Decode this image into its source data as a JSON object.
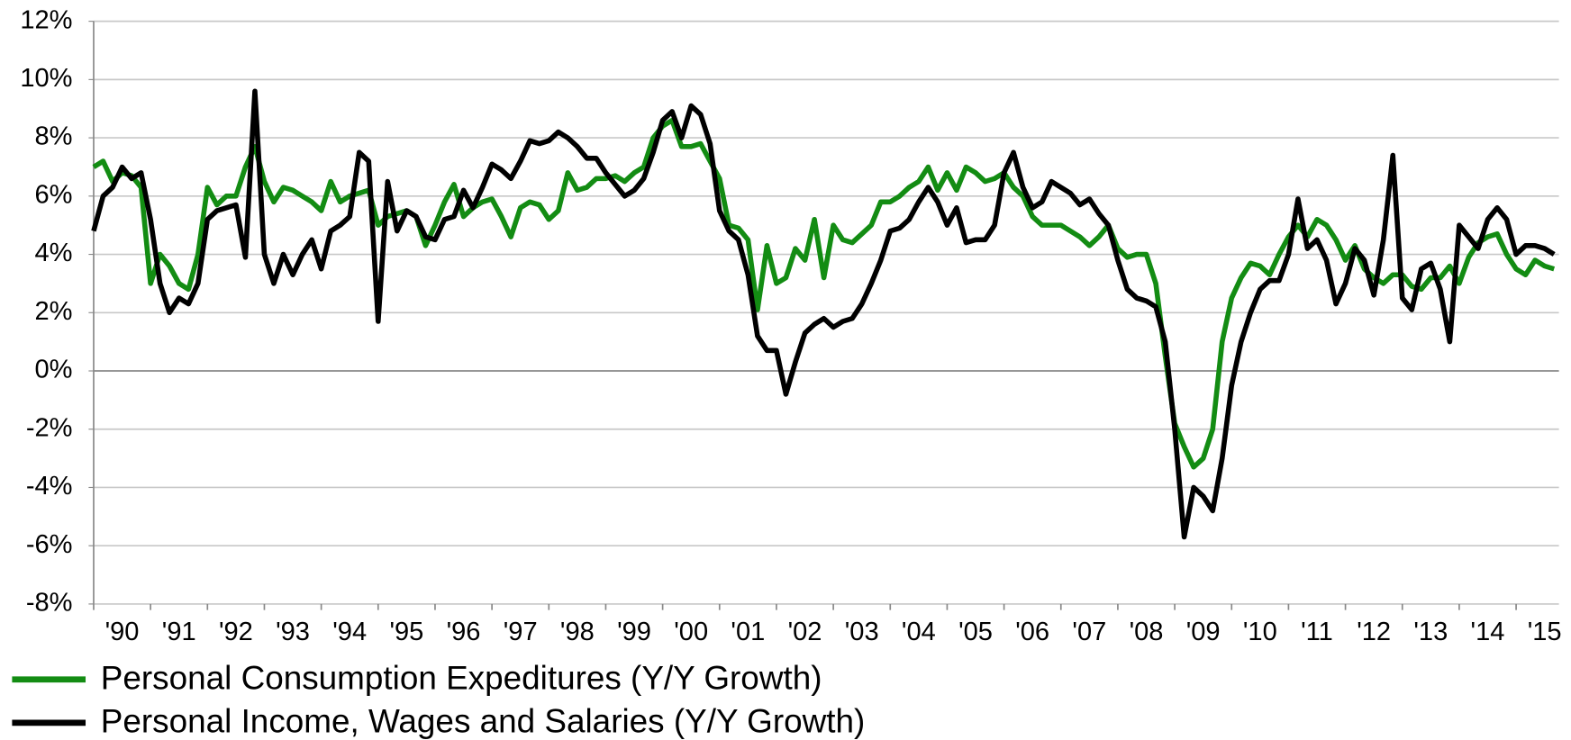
{
  "chart_data": {
    "type": "line",
    "categories": [
      "'90",
      null,
      null,
      null,
      null,
      null,
      "'91",
      null,
      null,
      null,
      null,
      null,
      "'92",
      null,
      null,
      null,
      null,
      null,
      "'93",
      null,
      null,
      null,
      null,
      null,
      "'94",
      null,
      null,
      null,
      null,
      null,
      "'95",
      null,
      null,
      null,
      null,
      null,
      "'96",
      null,
      null,
      null,
      null,
      null,
      "'97",
      null,
      null,
      null,
      null,
      null,
      "'98",
      null,
      null,
      null,
      null,
      null,
      "'99",
      null,
      null,
      null,
      null,
      null,
      "'00",
      null,
      null,
      null,
      null,
      null,
      "'01",
      null,
      null,
      null,
      null,
      null,
      "'02",
      null,
      null,
      null,
      null,
      null,
      "'03",
      null,
      null,
      null,
      null,
      null,
      "'04",
      null,
      null,
      null,
      null,
      null,
      "'05",
      null,
      null,
      null,
      null,
      null,
      "'06",
      null,
      null,
      null,
      null,
      null,
      "'07",
      null,
      null,
      null,
      null,
      null,
      "'08",
      null,
      null,
      null,
      null,
      null,
      "'09",
      null,
      null,
      null,
      null,
      null,
      "'10",
      null,
      null,
      null,
      null,
      null,
      "'11",
      null,
      null,
      null,
      null,
      null,
      "'12",
      null,
      null,
      null,
      null,
      null,
      "'13",
      null,
      null,
      null,
      null,
      null,
      "'14",
      null,
      null,
      null,
      null,
      null,
      "'15",
      null,
      null,
      null,
      null
    ],
    "series": [
      {
        "name": "Personal Consumption Expeditures (Y/Y Growth)",
        "color": "#138c13",
        "values": [
          7.0,
          7.2,
          6.5,
          6.8,
          6.7,
          6.3,
          3.0,
          4.0,
          3.6,
          3.0,
          2.8,
          4.0,
          6.3,
          5.7,
          6.0,
          6.0,
          7.0,
          7.7,
          6.5,
          5.8,
          6.3,
          6.2,
          6.0,
          5.8,
          5.5,
          6.5,
          5.8,
          6.0,
          6.1,
          6.2,
          5.0,
          5.3,
          5.4,
          5.5,
          5.3,
          4.3,
          5.0,
          5.8,
          6.4,
          5.3,
          5.6,
          5.8,
          5.9,
          5.3,
          4.6,
          5.6,
          5.8,
          5.7,
          5.2,
          5.5,
          6.8,
          6.2,
          6.3,
          6.6,
          6.6,
          6.7,
          6.5,
          6.8,
          7.0,
          8.0,
          8.4,
          8.6,
          7.7,
          7.7,
          7.8,
          7.2,
          6.6,
          5.0,
          4.9,
          4.5,
          2.1,
          4.3,
          3.0,
          3.2,
          4.2,
          3.8,
          5.2,
          3.2,
          5.0,
          4.5,
          4.4,
          4.7,
          5.0,
          5.8,
          5.8,
          6.0,
          6.3,
          6.5,
          7.0,
          6.2,
          6.8,
          6.2,
          7.0,
          6.8,
          6.5,
          6.6,
          6.8,
          6.3,
          6.0,
          5.3,
          5.0,
          5.0,
          5.0,
          4.8,
          4.6,
          4.3,
          4.6,
          5.0,
          4.2,
          3.9,
          4.0,
          4.0,
          3.0,
          0.5,
          -1.8,
          -2.6,
          -3.3,
          -3.0,
          -2.0,
          1.0,
          2.5,
          3.2,
          3.7,
          3.6,
          3.3,
          4.0,
          4.6,
          5.0,
          4.6,
          5.2,
          5.0,
          4.5,
          3.8,
          4.3,
          3.5,
          3.2,
          3.0,
          3.3,
          3.3,
          2.9,
          2.8,
          3.2,
          3.2,
          3.6,
          3.0,
          3.9,
          4.4,
          4.6,
          4.7,
          4.0,
          3.5,
          3.3,
          3.8,
          3.6,
          3.5
        ]
      },
      {
        "name": "Personal Income, Wages and Salaries (Y/Y Growth)",
        "color": "#000000",
        "values": [
          4.8,
          6.0,
          6.3,
          7.0,
          6.6,
          6.8,
          5.2,
          3.0,
          2.0,
          2.5,
          2.3,
          3.0,
          5.2,
          5.5,
          5.6,
          5.7,
          3.9,
          9.6,
          4.0,
          3.0,
          4.0,
          3.3,
          4.0,
          4.5,
          3.5,
          4.8,
          5.0,
          5.3,
          7.5,
          7.2,
          1.7,
          6.5,
          4.8,
          5.5,
          5.3,
          4.6,
          4.5,
          5.2,
          5.3,
          6.2,
          5.6,
          6.3,
          7.1,
          6.9,
          6.6,
          7.2,
          7.9,
          7.8,
          7.9,
          8.2,
          8.0,
          7.7,
          7.3,
          7.3,
          6.8,
          6.4,
          6.0,
          6.2,
          6.6,
          7.5,
          8.6,
          8.9,
          8.0,
          9.1,
          8.8,
          7.8,
          5.5,
          4.8,
          4.5,
          3.3,
          1.2,
          0.7,
          0.7,
          -0.8,
          0.3,
          1.3,
          1.6,
          1.8,
          1.5,
          1.7,
          1.8,
          2.3,
          3.0,
          3.8,
          4.8,
          4.9,
          5.2,
          5.8,
          6.3,
          5.8,
          5.0,
          5.6,
          4.4,
          4.5,
          4.5,
          5.0,
          6.8,
          7.5,
          6.3,
          5.6,
          5.8,
          6.5,
          6.3,
          6.1,
          5.7,
          5.9,
          5.4,
          5.0,
          3.8,
          2.8,
          2.5,
          2.4,
          2.2,
          1.0,
          -2.0,
          -5.7,
          -4.0,
          -4.3,
          -4.8,
          -3.0,
          -0.5,
          1.0,
          2.0,
          2.8,
          3.1,
          3.1,
          4.0,
          5.9,
          4.2,
          4.5,
          3.8,
          2.3,
          3.0,
          4.2,
          3.8,
          2.6,
          4.5,
          7.4,
          2.5,
          2.1,
          3.5,
          3.7,
          2.8,
          1.0,
          5.0,
          4.6,
          4.2,
          5.2,
          5.6,
          5.2,
          4.0,
          4.3,
          4.3,
          4.2,
          4.0
        ]
      }
    ],
    "ylim": [
      -8,
      12
    ],
    "yticks": [
      {
        "value": -8,
        "label": "-8%"
      },
      {
        "value": -6,
        "label": "-6%"
      },
      {
        "value": -4,
        "label": "-4%"
      },
      {
        "value": -2,
        "label": "-2%"
      },
      {
        "value": 0,
        "label": "0%"
      },
      {
        "value": 2,
        "label": "2%"
      },
      {
        "value": 4,
        "label": "4%"
      },
      {
        "value": 6,
        "label": "6%"
      },
      {
        "value": 8,
        "label": "8%"
      },
      {
        "value": 10,
        "label": "10%"
      },
      {
        "value": 12,
        "label": "12%"
      }
    ],
    "grid": true,
    "legend": "bottom"
  }
}
